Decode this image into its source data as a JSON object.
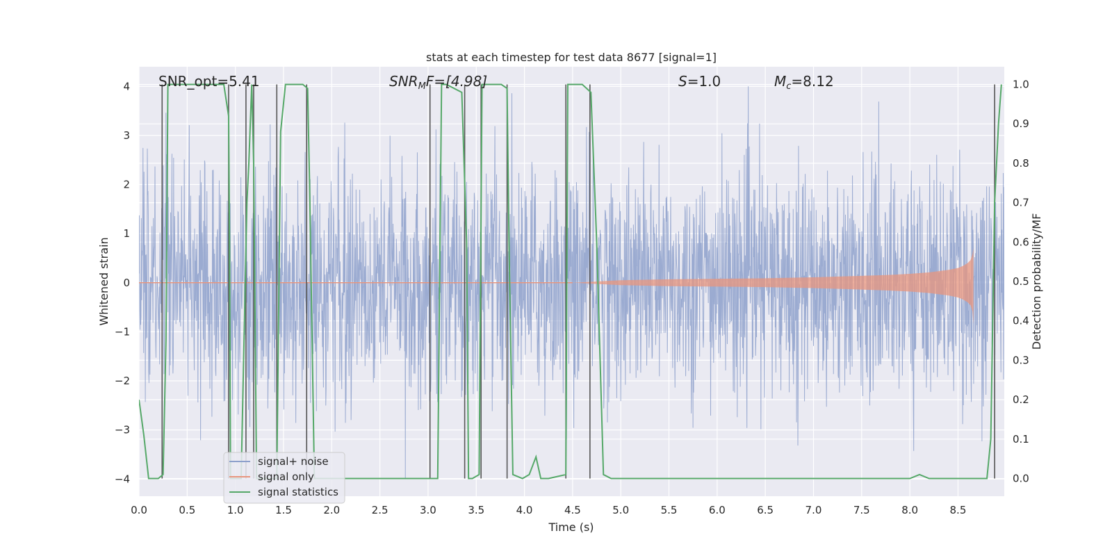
{
  "chart_data": {
    "type": "line",
    "title": "stats at each timestep for test data 8677 [signal=1]",
    "xlabel": "Time (s)",
    "ylabel_left": "Whitened strain",
    "ylabel_right": "Detection probability/MF",
    "xlim": [
      0.0,
      8.98
    ],
    "ylim_left": [
      -4.35,
      4.4
    ],
    "ylim_right": [
      -0.045,
      1.045
    ],
    "xticks": [
      0.0,
      0.5,
      1.0,
      1.5,
      2.0,
      2.5,
      3.0,
      3.5,
      4.0,
      4.5,
      5.0,
      5.5,
      6.0,
      6.5,
      7.0,
      7.5,
      8.0,
      8.5
    ],
    "xtick_labels": [
      "0.0",
      "0.5",
      "1.0",
      "1.5",
      "2.0",
      "2.5",
      "3.0",
      "3.5",
      "4.0",
      "4.5",
      "5.0",
      "5.5",
      "6.0",
      "6.5",
      "7.0",
      "7.5",
      "8.0",
      "8.5"
    ],
    "yticks_left": [
      -4,
      -3,
      -2,
      -1,
      0,
      1,
      2,
      3,
      4
    ],
    "ytick_labels_left": [
      "−4",
      "−3",
      "−2",
      "−1",
      "0",
      "1",
      "2",
      "3",
      "4"
    ],
    "yticks_right": [
      0.0,
      0.1,
      0.2,
      0.3,
      0.4,
      0.5,
      0.6,
      0.7,
      0.8,
      0.9,
      1.0
    ],
    "ytick_labels_right": [
      "0.0",
      "0.1",
      "0.2",
      "0.3",
      "0.4",
      "0.5",
      "0.6",
      "0.7",
      "0.8",
      "0.9",
      "1.0"
    ],
    "grid": true,
    "annotations": {
      "snr_opt": "SNR_opt=5.41",
      "snr_mf_prefix": "SNR",
      "snr_mf_sub": "M",
      "snr_mf_suffix": "F=[4.98]",
      "s_italic": "S",
      "s_value": "=1.0",
      "mc_prefix": "M",
      "mc_sub": "c",
      "mc_value": "=8.12"
    },
    "legend": {
      "placement": "lower-left",
      "entries": [
        "signal+ noise",
        "signal only",
        "signal statistics"
      ]
    },
    "colors": {
      "noise": "#8da0cb",
      "signal_only": "#e8967e",
      "statistics": "#55a868",
      "vlines": "#555555",
      "background": "#eaeaf2",
      "grid": "#ffffff"
    },
    "series": [
      {
        "name": "signal+ noise",
        "axis": "left",
        "kind": "noise-envelope",
        "t_start": 0.0,
        "t_end": 8.98,
        "typical_amplitude": 1.8,
        "peak_max": 4.0,
        "peak_min": -4.0
      },
      {
        "name": "signal only",
        "axis": "left",
        "kind": "chirp-envelope",
        "t": [
          4.5,
          5.0,
          5.5,
          6.0,
          6.5,
          7.0,
          7.5,
          7.8,
          8.0,
          8.2,
          8.4,
          8.5,
          8.55,
          8.6,
          8.63,
          8.65,
          8.66
        ],
        "amplitude": [
          0.0,
          0.05,
          0.07,
          0.08,
          0.09,
          0.11,
          0.14,
          0.16,
          0.18,
          0.21,
          0.26,
          0.3,
          0.34,
          0.4,
          0.46,
          0.58,
          0.7
        ],
        "amplitude_min_at_end": -0.85
      },
      {
        "name": "signal statistics",
        "axis": "right",
        "x": [
          0.0,
          0.05,
          0.1,
          0.2,
          0.25,
          0.28,
          0.3,
          0.5,
          0.88,
          0.93,
          0.94,
          0.95,
          1.06,
          1.12,
          1.14,
          1.17,
          1.19,
          1.22,
          1.43,
          1.47,
          1.52,
          1.7,
          1.75,
          1.77,
          1.82,
          2.5,
          2.95,
          3.1,
          3.14,
          3.19,
          3.35,
          3.4,
          3.42,
          3.46,
          3.53,
          3.56,
          3.6,
          3.76,
          3.82,
          3.84,
          3.88,
          3.98,
          4.05,
          4.12,
          4.17,
          4.25,
          4.43,
          4.45,
          4.6,
          4.69,
          4.75,
          4.82,
          4.9,
          5.07,
          6.0,
          7.0,
          8.0,
          8.1,
          8.2,
          8.5,
          8.8,
          8.84,
          8.88,
          8.92,
          8.95
        ],
        "y": [
          0.2,
          0.11,
          0.0,
          0.0,
          0.01,
          0.35,
          1.0,
          1.0,
          1.0,
          0.92,
          0.6,
          0.0,
          0.0,
          0.7,
          0.8,
          1.0,
          0.8,
          0.0,
          0.0,
          0.88,
          1.0,
          1.0,
          0.99,
          0.75,
          0.0,
          0.0,
          0.0,
          0.0,
          1.0,
          1.0,
          0.98,
          0.6,
          0.0,
          0.0,
          0.01,
          1.0,
          1.0,
          1.0,
          0.99,
          0.6,
          0.01,
          0.0,
          0.01,
          0.055,
          0.0,
          0.0,
          0.01,
          1.0,
          1.0,
          0.98,
          0.6,
          0.01,
          0.0,
          0.0,
          0.0,
          0.0,
          0.0,
          0.01,
          0.0,
          0.0,
          0.0,
          0.1,
          0.7,
          0.9,
          1.0
        ]
      }
    ],
    "vlines": [
      0.24,
      0.93,
      1.11,
      1.19,
      1.43,
      1.74,
      3.02,
      3.38,
      3.55,
      3.82,
      4.43,
      4.68,
      8.88
    ]
  }
}
